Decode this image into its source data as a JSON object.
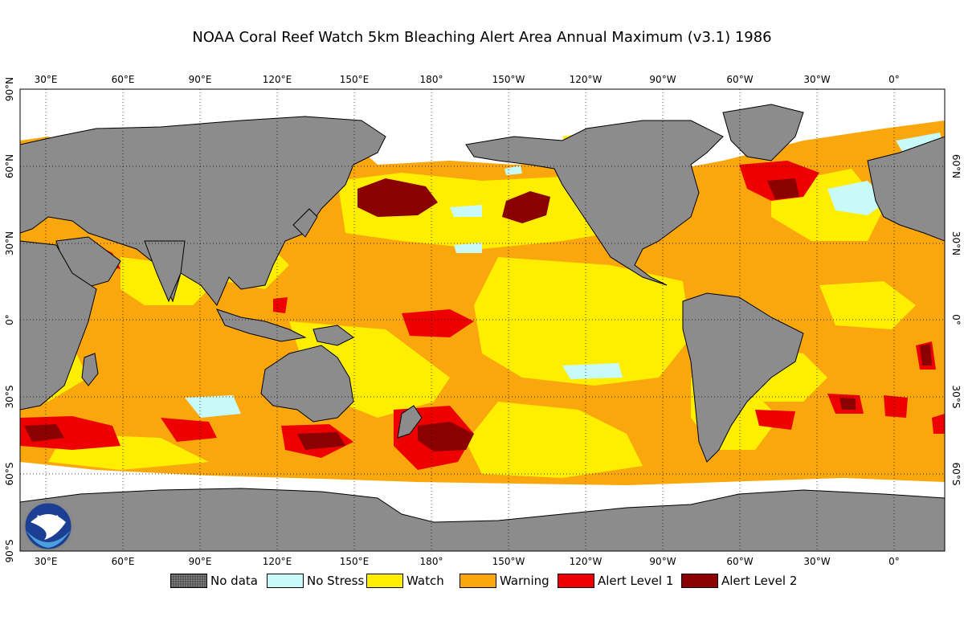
{
  "title": "NOAA Coral Reef Watch 5km Bleaching Alert Area Annual Maximum  (v3.1)   1986",
  "map": {
    "colors": {
      "land": "#8c8c8c",
      "no_data_ice": "#ffffff",
      "ocean_base": "#f9a70c",
      "border": "#000000"
    },
    "top_ticks": [
      "30°E",
      "60°E",
      "90°E",
      "120°E",
      "150°E",
      "180°",
      "150°W",
      "120°W",
      "90°W",
      "60°W",
      "30°W",
      "0°"
    ],
    "bottom_ticks": [
      "30°E",
      "60°E",
      "90°E",
      "120°E",
      "150°E",
      "180°",
      "150°W",
      "120°W",
      "90°W",
      "60°W",
      "30°W",
      "0°"
    ],
    "left_ticks": [
      "90°N",
      "60°N",
      "30°N",
      "0°",
      "30°S",
      "60°S",
      "90°S"
    ],
    "right_ticks": [
      "60°N",
      "30°N",
      "0°",
      "30°S",
      "60°S"
    ],
    "logo_text": "NOAA"
  },
  "legend": [
    {
      "label": "No data",
      "color": "#555555",
      "pattern": "dots"
    },
    {
      "label": "No Stress",
      "color": "#c8fafa"
    },
    {
      "label": "Watch",
      "color": "#ffee00"
    },
    {
      "label": "Warning",
      "color": "#f9a70c"
    },
    {
      "label": "Alert Level 1",
      "color": "#ee0000"
    },
    {
      "label": "Alert Level 2",
      "color": "#8b0000"
    }
  ]
}
